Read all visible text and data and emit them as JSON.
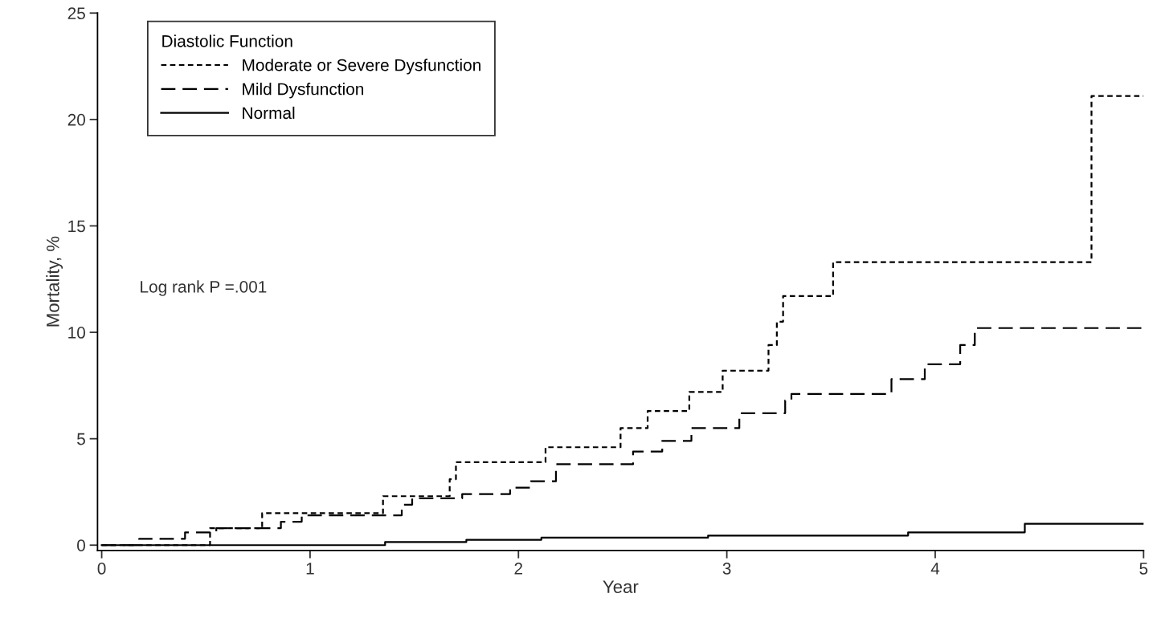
{
  "chart_data": {
    "type": "step",
    "xlabel": "Year",
    "ylabel": "Mortality, %",
    "legend_title": "Diastolic Function",
    "legend": "top left",
    "xlim": [
      -0.02,
      5
    ],
    "xticks": [
      0,
      1,
      2,
      3,
      4,
      5
    ],
    "ylim": [
      -0.25,
      25
    ],
    "yticks": [
      0,
      5,
      10,
      15,
      20,
      25
    ],
    "grid": false,
    "annotations": [
      "Log rank P =.001"
    ],
    "series": [
      {
        "name": "Moderate or Severe Dysfunction",
        "color": "#000000",
        "line_style": "dotted",
        "x": [
          0,
          0.52,
          0.77,
          1.35,
          1.67,
          1.7,
          2.13,
          2.49,
          2.62,
          2.82,
          2.98,
          3.2,
          3.24,
          3.27,
          3.51,
          4.75,
          5
        ],
        "values": [
          0,
          0.8,
          1.5,
          2.3,
          3.1,
          3.9,
          4.6,
          5.5,
          6.3,
          7.2,
          8.2,
          9.4,
          10.5,
          11.7,
          13.3,
          21.1,
          21.1
        ]
      },
      {
        "name": "Mild Dysfunction",
        "color": "#000000",
        "line_style": "dashed",
        "x": [
          0,
          0.18,
          0.4,
          0.55,
          0.86,
          0.96,
          1.44,
          1.49,
          1.73,
          1.96,
          2.06,
          2.18,
          2.55,
          2.69,
          2.83,
          3.06,
          3.28,
          3.31,
          3.79,
          3.95,
          4.12,
          4.19,
          5
        ],
        "values": [
          0,
          0.3,
          0.6,
          0.8,
          1.1,
          1.4,
          1.9,
          2.2,
          2.4,
          2.7,
          3.0,
          3.8,
          4.4,
          4.9,
          5.5,
          6.2,
          6.8,
          7.1,
          7.8,
          8.5,
          9.4,
          10.2,
          10.2
        ]
      },
      {
        "name": "Normal",
        "color": "#000000",
        "line_style": "solid",
        "x": [
          0,
          1.36,
          1.75,
          2.11,
          2.91,
          3.87,
          4.43,
          5
        ],
        "values": [
          0,
          0.15,
          0.25,
          0.35,
          0.45,
          0.6,
          1.0,
          1.0
        ]
      }
    ]
  }
}
